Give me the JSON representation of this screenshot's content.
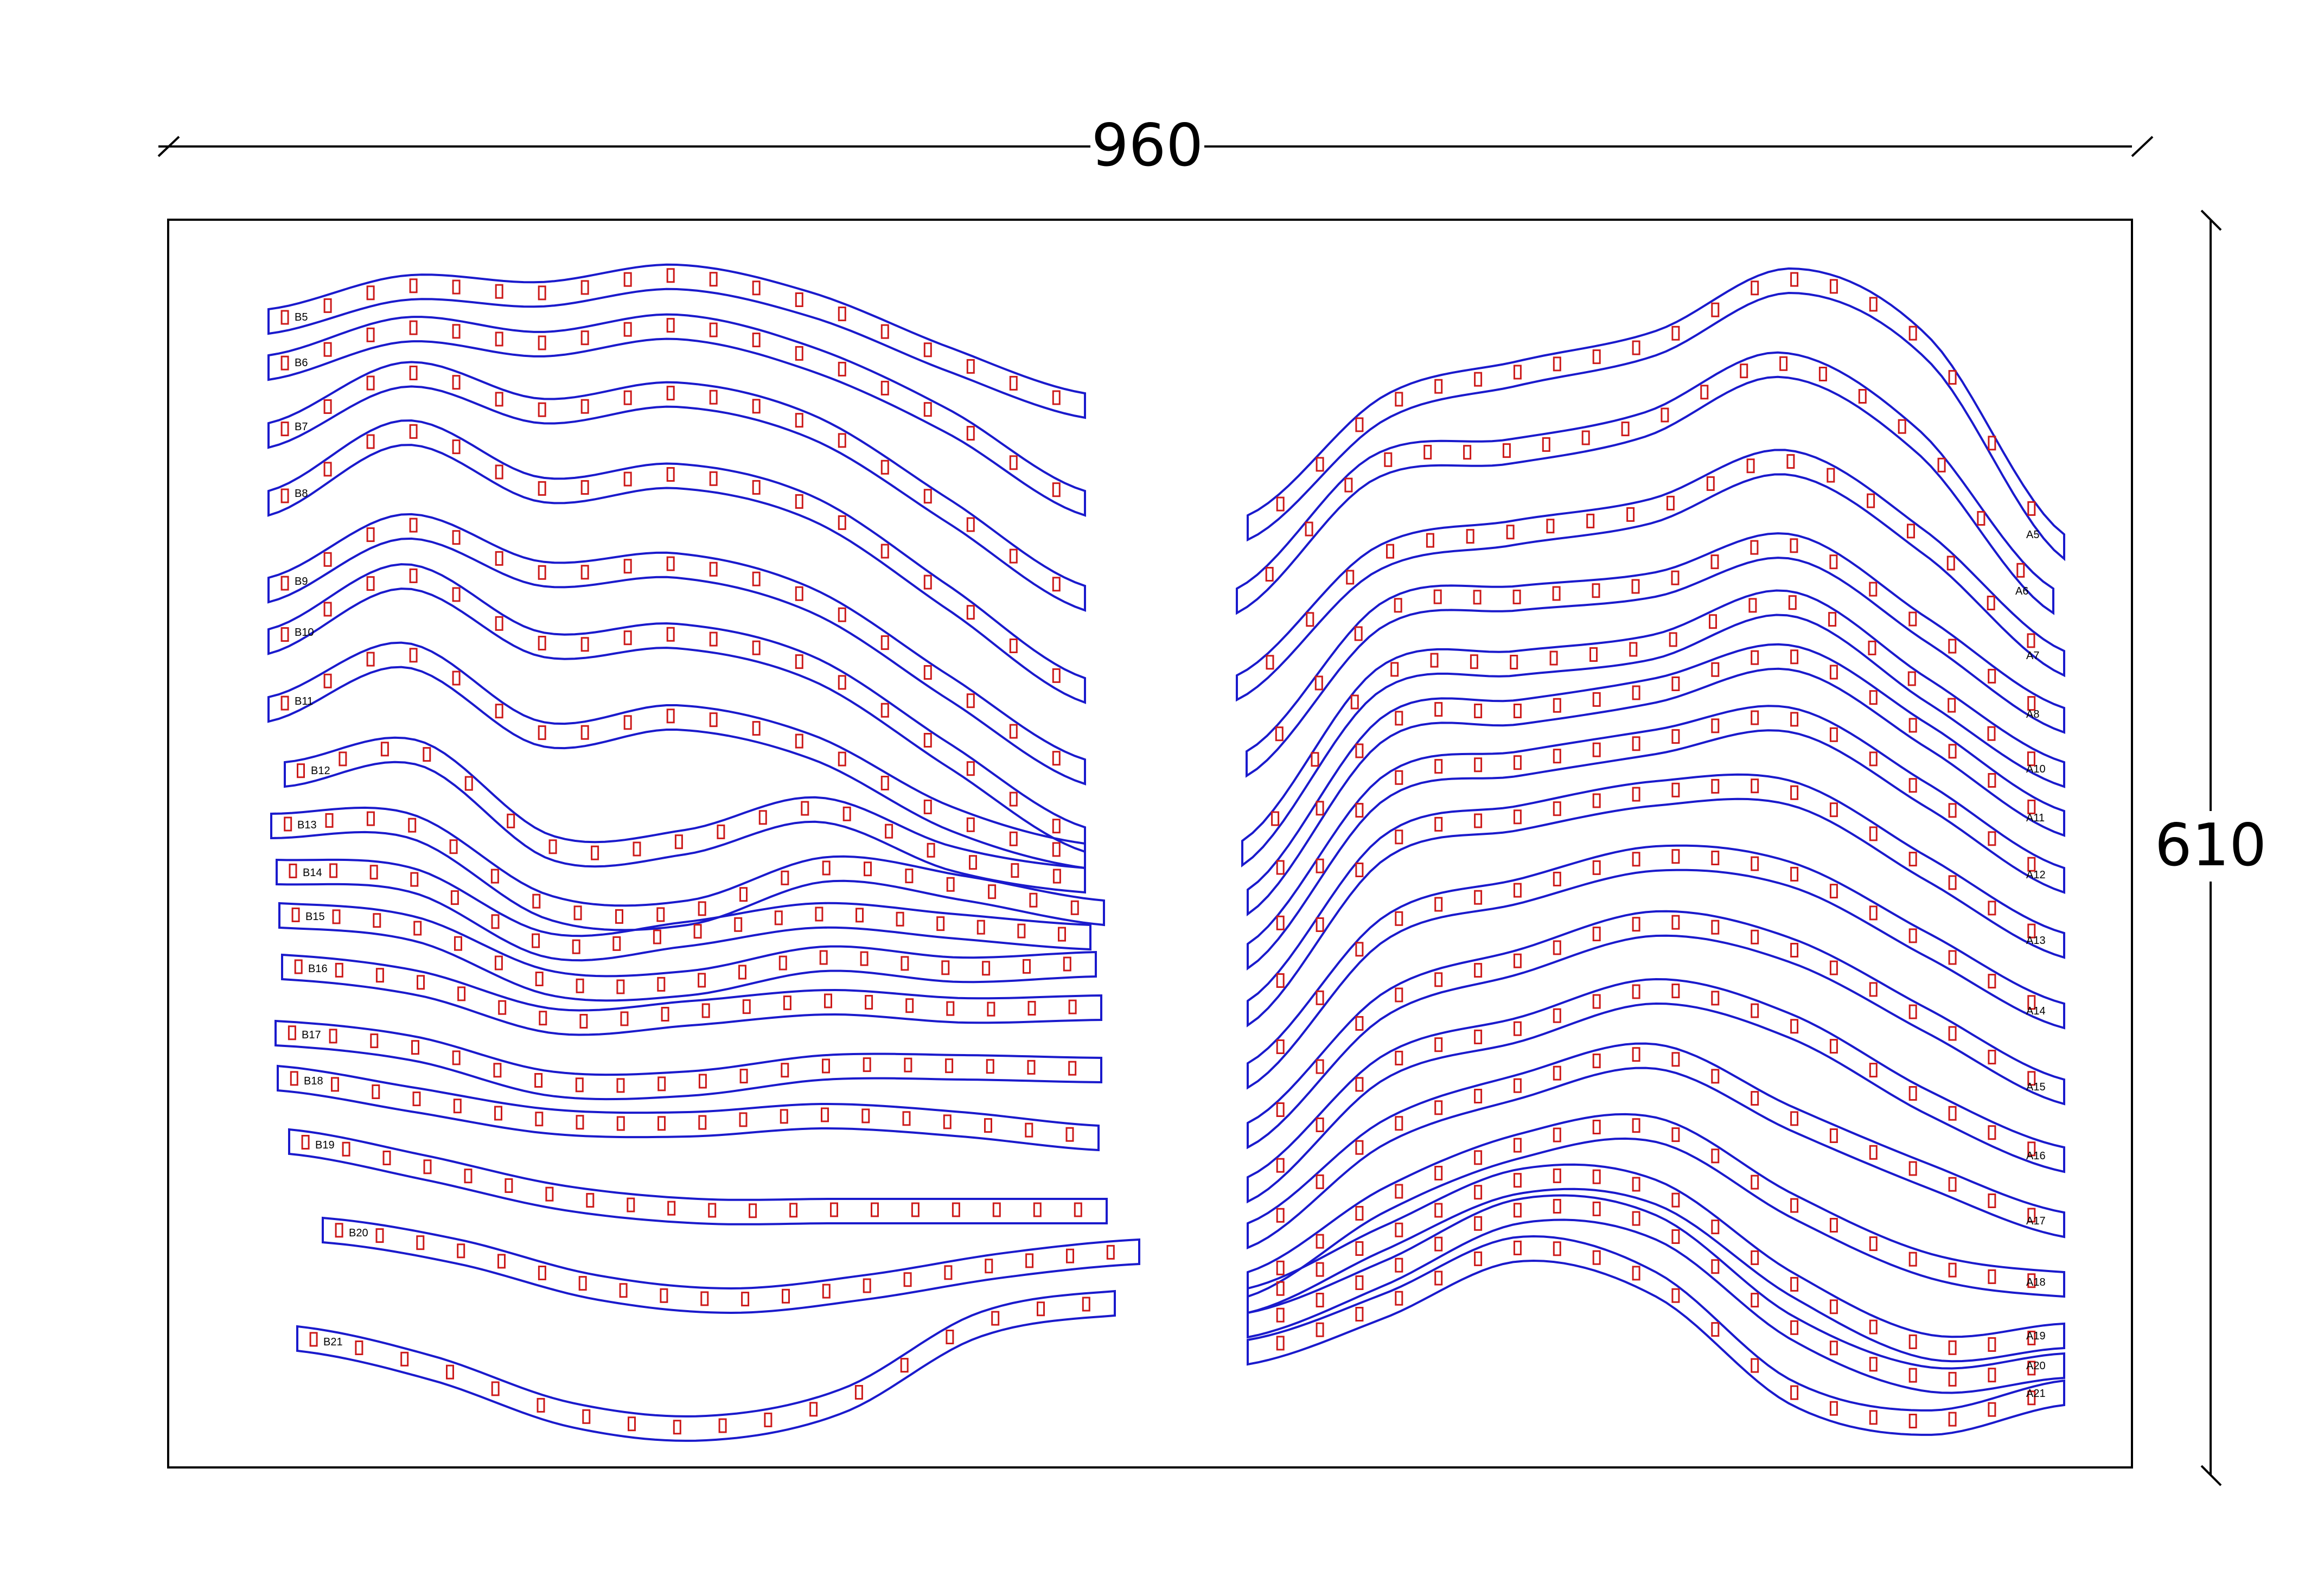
{
  "dimensions": {
    "width_label": "960",
    "height_label": "610"
  },
  "colors": {
    "strip_outline": "#1a1acc",
    "slot_outline": "#cc1a1a",
    "frame": "#000000",
    "dimension_line": "#000000"
  },
  "left_group": {
    "labels": [
      "B5",
      "B6",
      "B7",
      "B8",
      "B9",
      "B10",
      "B11",
      "B12",
      "B13",
      "B14",
      "B15",
      "B16",
      "B17",
      "B18",
      "B19",
      "B20",
      "B21"
    ]
  },
  "right_group": {
    "labels": [
      "A5",
      "A6",
      "A7",
      "A8",
      "A10",
      "A11",
      "A12",
      "A13",
      "A14",
      "A15",
      "A16",
      "A17",
      "A18",
      "A19",
      "A20",
      "A21"
    ]
  }
}
